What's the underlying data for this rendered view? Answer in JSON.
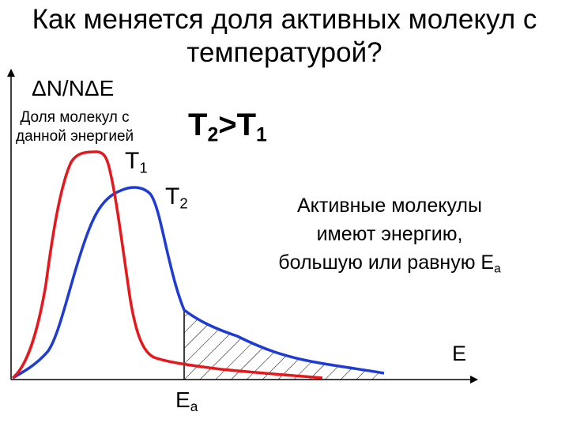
{
  "title": "Как меняется доля активных молекул с температурой?",
  "y_axis": {
    "label": "ΔN/NΔE",
    "description_line1": "Доля молекул с",
    "description_line2": "данной энергией"
  },
  "comparison": {
    "main": "T",
    "sub1": "2",
    "sign": ">T",
    "sub2": "1"
  },
  "curve_t1": {
    "main": "T",
    "sub": "1",
    "color": "#e8171b"
  },
  "curve_t2": {
    "main": "T",
    "sub": "2",
    "color": "#1e3bd6"
  },
  "note": {
    "line1": "Активные молекулы",
    "line2": "имеют энергию,",
    "line3": "большую или равную E",
    "line3_sub": "a"
  },
  "x_axis": {
    "label": "E"
  },
  "activation_energy": {
    "main": "E",
    "sub": "a"
  }
}
